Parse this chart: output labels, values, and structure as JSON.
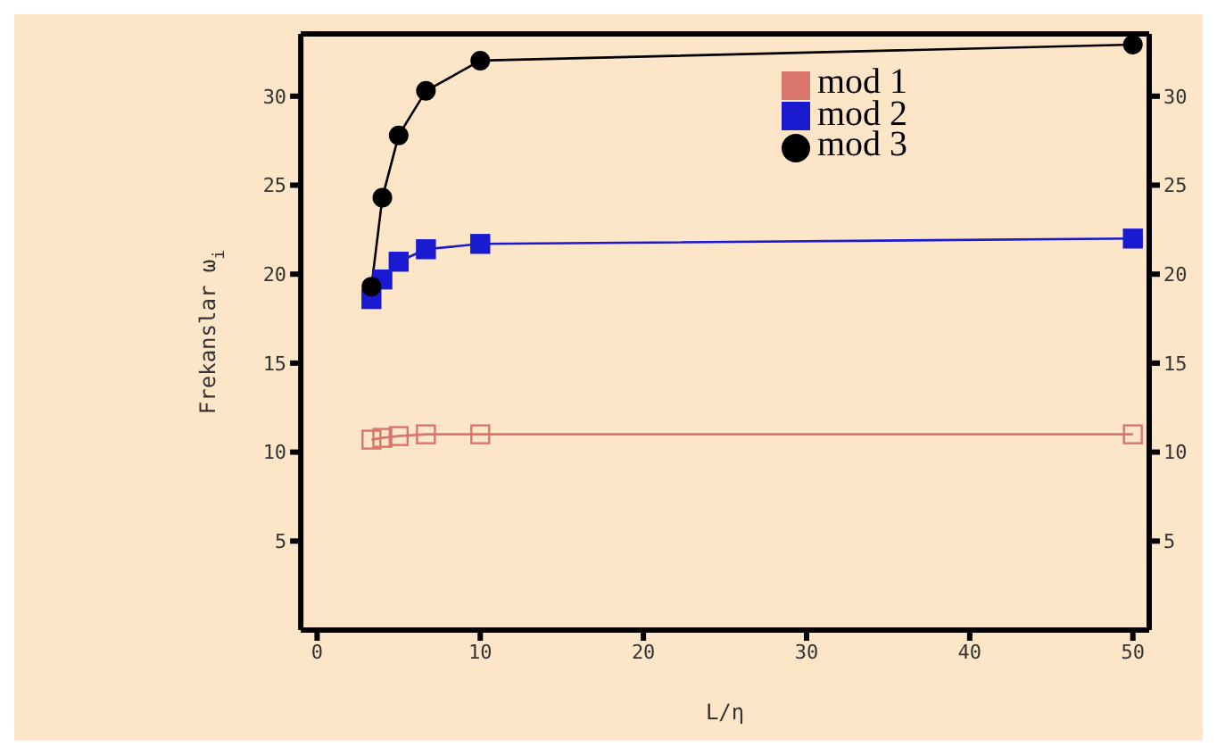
{
  "chart_data": {
    "type": "line",
    "xlabel": "L/η",
    "ylabel": "Frekanslar ω$_{i}$",
    "x": [
      3.33,
      4,
      5,
      6.67,
      10,
      50
    ],
    "series": [
      {
        "name": "mod 1",
        "color": "#d9756a",
        "marker": "square",
        "values": [
          10.7,
          10.8,
          10.9,
          11.0,
          11.0,
          11.0
        ]
      },
      {
        "name": "mod 2",
        "color": "#1a1ad0",
        "marker": "square",
        "values": [
          18.6,
          19.7,
          20.7,
          21.4,
          21.7,
          22.0
        ]
      },
      {
        "name": "mod 3",
        "color": "#000000",
        "marker": "circle",
        "values": [
          19.3,
          24.3,
          27.8,
          30.3,
          32.0,
          32.9
        ]
      }
    ],
    "xlim": [
      -1,
      51
    ],
    "xticks": [
      0,
      10,
      20,
      30,
      40,
      50
    ],
    "ylim": [
      0,
      33.5
    ],
    "yticks": [
      5,
      10,
      15,
      20,
      25,
      30
    ],
    "y2lim": [
      0,
      33.5
    ],
    "y2ticks": [
      5,
      10,
      15,
      20,
      25,
      30
    ],
    "legend": "top right",
    "grid": false
  }
}
